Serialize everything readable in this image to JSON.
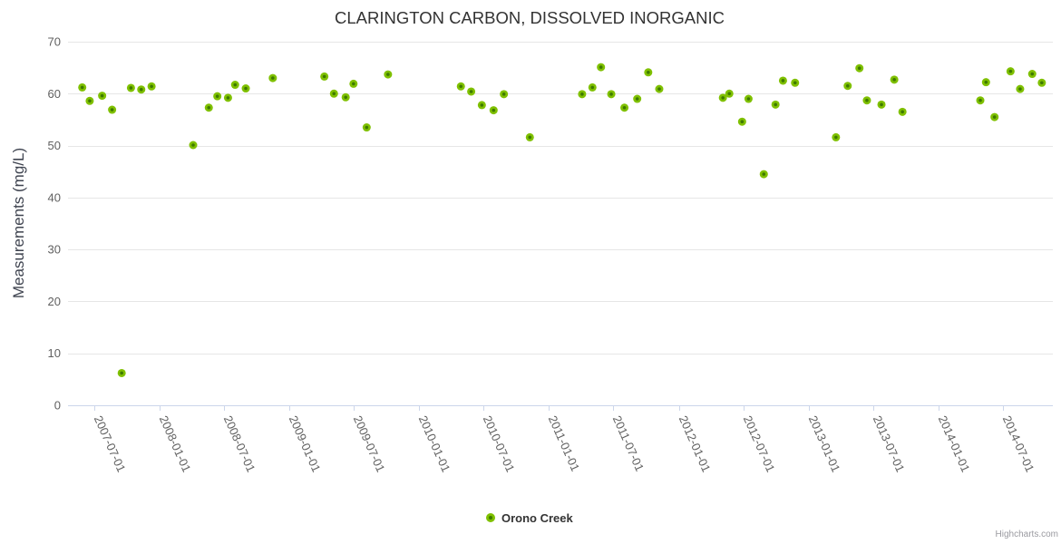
{
  "chart_data": {
    "type": "scatter",
    "title": "CLARINGTON CARBON, DISSOLVED INORGANIC",
    "xlabel": "",
    "ylabel": "Measurements (mg/L)",
    "ylim": [
      0,
      70
    ],
    "y_ticks": [
      0,
      10,
      20,
      30,
      40,
      50,
      60,
      70
    ],
    "x_tick_labels": [
      "2007-07-01",
      "2008-01-01",
      "2008-07-01",
      "2009-01-01",
      "2009-07-01",
      "2010-01-01",
      "2010-07-01",
      "2011-01-01",
      "2011-07-01",
      "2012-01-01",
      "2012-07-01",
      "2013-01-01",
      "2013-07-01",
      "2014-01-01",
      "2014-07-01"
    ],
    "x_min": "2007-04-19",
    "x_max": "2014-11-18",
    "grid": "horizontal-only",
    "legend_position": "bottom-center",
    "series": [
      {
        "name": "Orono Creek",
        "color": "#7fc000",
        "marker_core_color": "#3e7a00",
        "points": [
          [
            "2007-05-29",
            61.2
          ],
          [
            "2007-06-19",
            58.6
          ],
          [
            "2007-07-24",
            59.6
          ],
          [
            "2007-08-21",
            56.9
          ],
          [
            "2007-09-17",
            6.2
          ],
          [
            "2007-10-13",
            61.1
          ],
          [
            "2007-11-11",
            60.8
          ],
          [
            "2007-12-10",
            61.4
          ],
          [
            "2008-04-05",
            50.1
          ],
          [
            "2008-05-19",
            57.3
          ],
          [
            "2008-06-12",
            59.5
          ],
          [
            "2008-07-12",
            59.2
          ],
          [
            "2008-08-01",
            61.7
          ],
          [
            "2008-08-31",
            61.0
          ],
          [
            "2008-11-15",
            63.0
          ],
          [
            "2009-04-09",
            63.3
          ],
          [
            "2009-05-06",
            60.0
          ],
          [
            "2009-06-08",
            59.3
          ],
          [
            "2009-06-30",
            61.9
          ],
          [
            "2009-08-06",
            53.5
          ],
          [
            "2009-10-05",
            63.7
          ],
          [
            "2010-04-28",
            61.4
          ],
          [
            "2010-05-27",
            60.4
          ],
          [
            "2010-06-26",
            57.8
          ],
          [
            "2010-07-29",
            56.8
          ],
          [
            "2010-08-27",
            59.9
          ],
          [
            "2010-11-08",
            51.6
          ],
          [
            "2011-04-04",
            59.9
          ],
          [
            "2011-05-03",
            61.2
          ],
          [
            "2011-05-27",
            65.1
          ],
          [
            "2011-06-25",
            59.9
          ],
          [
            "2011-08-01",
            57.3
          ],
          [
            "2011-09-06",
            59.0
          ],
          [
            "2011-10-07",
            64.1
          ],
          [
            "2011-11-07",
            60.9
          ],
          [
            "2012-05-04",
            59.2
          ],
          [
            "2012-05-22",
            60.0
          ],
          [
            "2012-06-27",
            54.6
          ],
          [
            "2012-07-15",
            59.0
          ],
          [
            "2012-08-27",
            44.5
          ],
          [
            "2012-09-29",
            57.9
          ],
          [
            "2012-10-20",
            62.5
          ],
          [
            "2012-11-23",
            62.1
          ],
          [
            "2013-03-18",
            51.6
          ],
          [
            "2013-04-20",
            61.5
          ],
          [
            "2013-05-23",
            64.9
          ],
          [
            "2013-06-13",
            58.7
          ],
          [
            "2013-07-24",
            57.9
          ],
          [
            "2013-08-29",
            62.7
          ],
          [
            "2013-09-21",
            56.5
          ],
          [
            "2014-04-28",
            58.7
          ],
          [
            "2014-05-14",
            62.2
          ],
          [
            "2014-06-07",
            55.5
          ],
          [
            "2014-07-22",
            64.3
          ],
          [
            "2014-08-18",
            60.9
          ],
          [
            "2014-09-21",
            63.8
          ],
          [
            "2014-10-18",
            62.1
          ]
        ]
      }
    ]
  },
  "colors": {
    "title": "#333333",
    "axis_label": "#606060",
    "grid_line": "#e6e6e6",
    "axis_line": "#ccd6eb",
    "background": "#ffffff",
    "legend_text": "#333333",
    "credits_text": "#9a9aa0"
  },
  "credits": "Highcharts.com"
}
